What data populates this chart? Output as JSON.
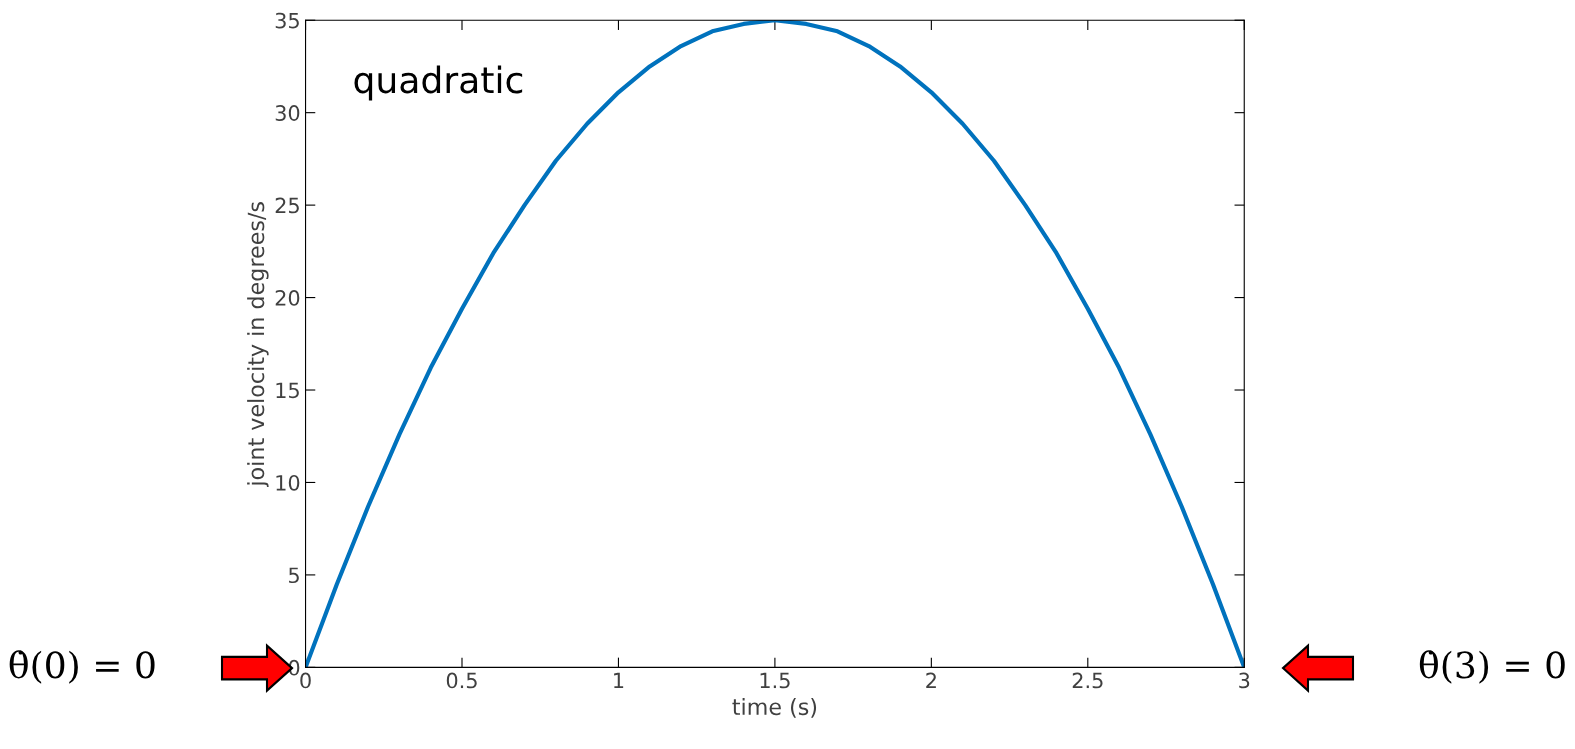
{
  "chart_data": {
    "type": "line",
    "xlabel": "time (s)",
    "ylabel": "joint velocity in degrees/s",
    "x": [
      0,
      0.1,
      0.2,
      0.3,
      0.4,
      0.5,
      0.6,
      0.7,
      0.8,
      0.9,
      1.0,
      1.1,
      1.2,
      1.3,
      1.4,
      1.5,
      1.6,
      1.7,
      1.8,
      1.9,
      2.0,
      2.1,
      2.2,
      2.3,
      2.4,
      2.5,
      2.6,
      2.7,
      2.8,
      2.9,
      3.0
    ],
    "series": [
      {
        "color": "#0072bd",
        "values": [
          0,
          4.5,
          8.7,
          12.6,
          16.2,
          19.4,
          22.4,
          25.0,
          27.4,
          29.4,
          31.1,
          32.5,
          33.6,
          34.4,
          34.8,
          35.0,
          34.8,
          34.4,
          33.6,
          32.5,
          31.1,
          29.4,
          27.4,
          25.0,
          22.4,
          19.4,
          16.2,
          12.6,
          8.7,
          4.5,
          0
        ]
      }
    ],
    "xlim": [
      0,
      3
    ],
    "xticks": [
      0,
      0.5,
      1,
      1.5,
      2,
      2.5,
      3
    ],
    "ylim": [
      0,
      35
    ],
    "yticks": [
      0,
      5,
      10,
      15,
      20,
      25,
      30,
      35
    ],
    "grid": false,
    "legend": false,
    "marker": "none",
    "line_style": "solid",
    "annotations": [
      "quadratic",
      "θ̇(0) = 0",
      "θ̇(3) = 0"
    ]
  }
}
